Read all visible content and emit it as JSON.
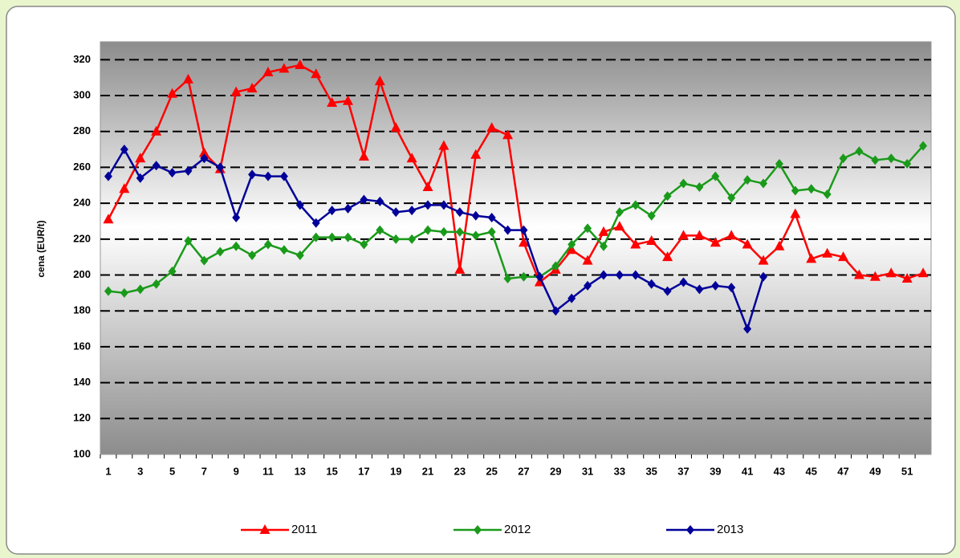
{
  "chart_data": {
    "type": "line",
    "y_label": "cena (EUR/t)",
    "categories": [
      "1",
      null,
      "3",
      null,
      "5",
      null,
      "7",
      null,
      "9",
      null,
      "11",
      null,
      "13",
      null,
      "15",
      null,
      "17",
      null,
      "19",
      null,
      "21",
      null,
      "23",
      null,
      "25",
      null,
      "27",
      null,
      "29",
      null,
      "31",
      null,
      "33",
      null,
      "35",
      null,
      "37",
      null,
      "39",
      null,
      "41",
      null,
      "43",
      null,
      "45",
      null,
      "47",
      null,
      "49",
      null,
      "51",
      null
    ],
    "series": [
      {
        "name": "2011",
        "color": "#ff0000",
        "marker": "triangle",
        "values": [
          231,
          248,
          265,
          280,
          301,
          309,
          268,
          259,
          302,
          304,
          313,
          315,
          317,
          312,
          296,
          297,
          266,
          308,
          282,
          265,
          249,
          272,
          203,
          267,
          282,
          278,
          218,
          196,
          203,
          214,
          208,
          224,
          227,
          217,
          219,
          210,
          222,
          222,
          218,
          222,
          217,
          208,
          216,
          234,
          209,
          212,
          210,
          200,
          199,
          201,
          198,
          201
        ]
      },
      {
        "name": "2012",
        "color": "#1a9a1a",
        "marker": "diamond",
        "values": [
          191,
          190,
          192,
          195,
          202,
          219,
          208,
          213,
          216,
          211,
          217,
          214,
          211,
          221,
          221,
          221,
          217,
          225,
          220,
          220,
          225,
          224,
          224,
          222,
          224,
          198,
          199,
          199,
          205,
          217,
          226,
          216,
          235,
          239,
          233,
          244,
          251,
          249,
          255,
          243,
          253,
          251,
          262,
          247,
          248,
          245,
          265,
          269,
          264,
          265,
          262,
          272
        ]
      },
      {
        "name": "2013",
        "color": "#000099",
        "marker": "diamond",
        "values": [
          255,
          270,
          254,
          261,
          257,
          258,
          265,
          260,
          232,
          256,
          255,
          255,
          239,
          229,
          236,
          237,
          242,
          241,
          235,
          236,
          239,
          239,
          235,
          233,
          232,
          225,
          225,
          199,
          180,
          187,
          194,
          200,
          200,
          200,
          195,
          191,
          196,
          192,
          194,
          193,
          170,
          199,
          null,
          null,
          null,
          null,
          null,
          null,
          null,
          null,
          null,
          null
        ]
      }
    ],
    "ylim": [
      100,
      330
    ],
    "yticks": [
      100,
      120,
      140,
      160,
      180,
      200,
      220,
      240,
      260,
      280,
      300,
      320
    ],
    "grid": true
  }
}
